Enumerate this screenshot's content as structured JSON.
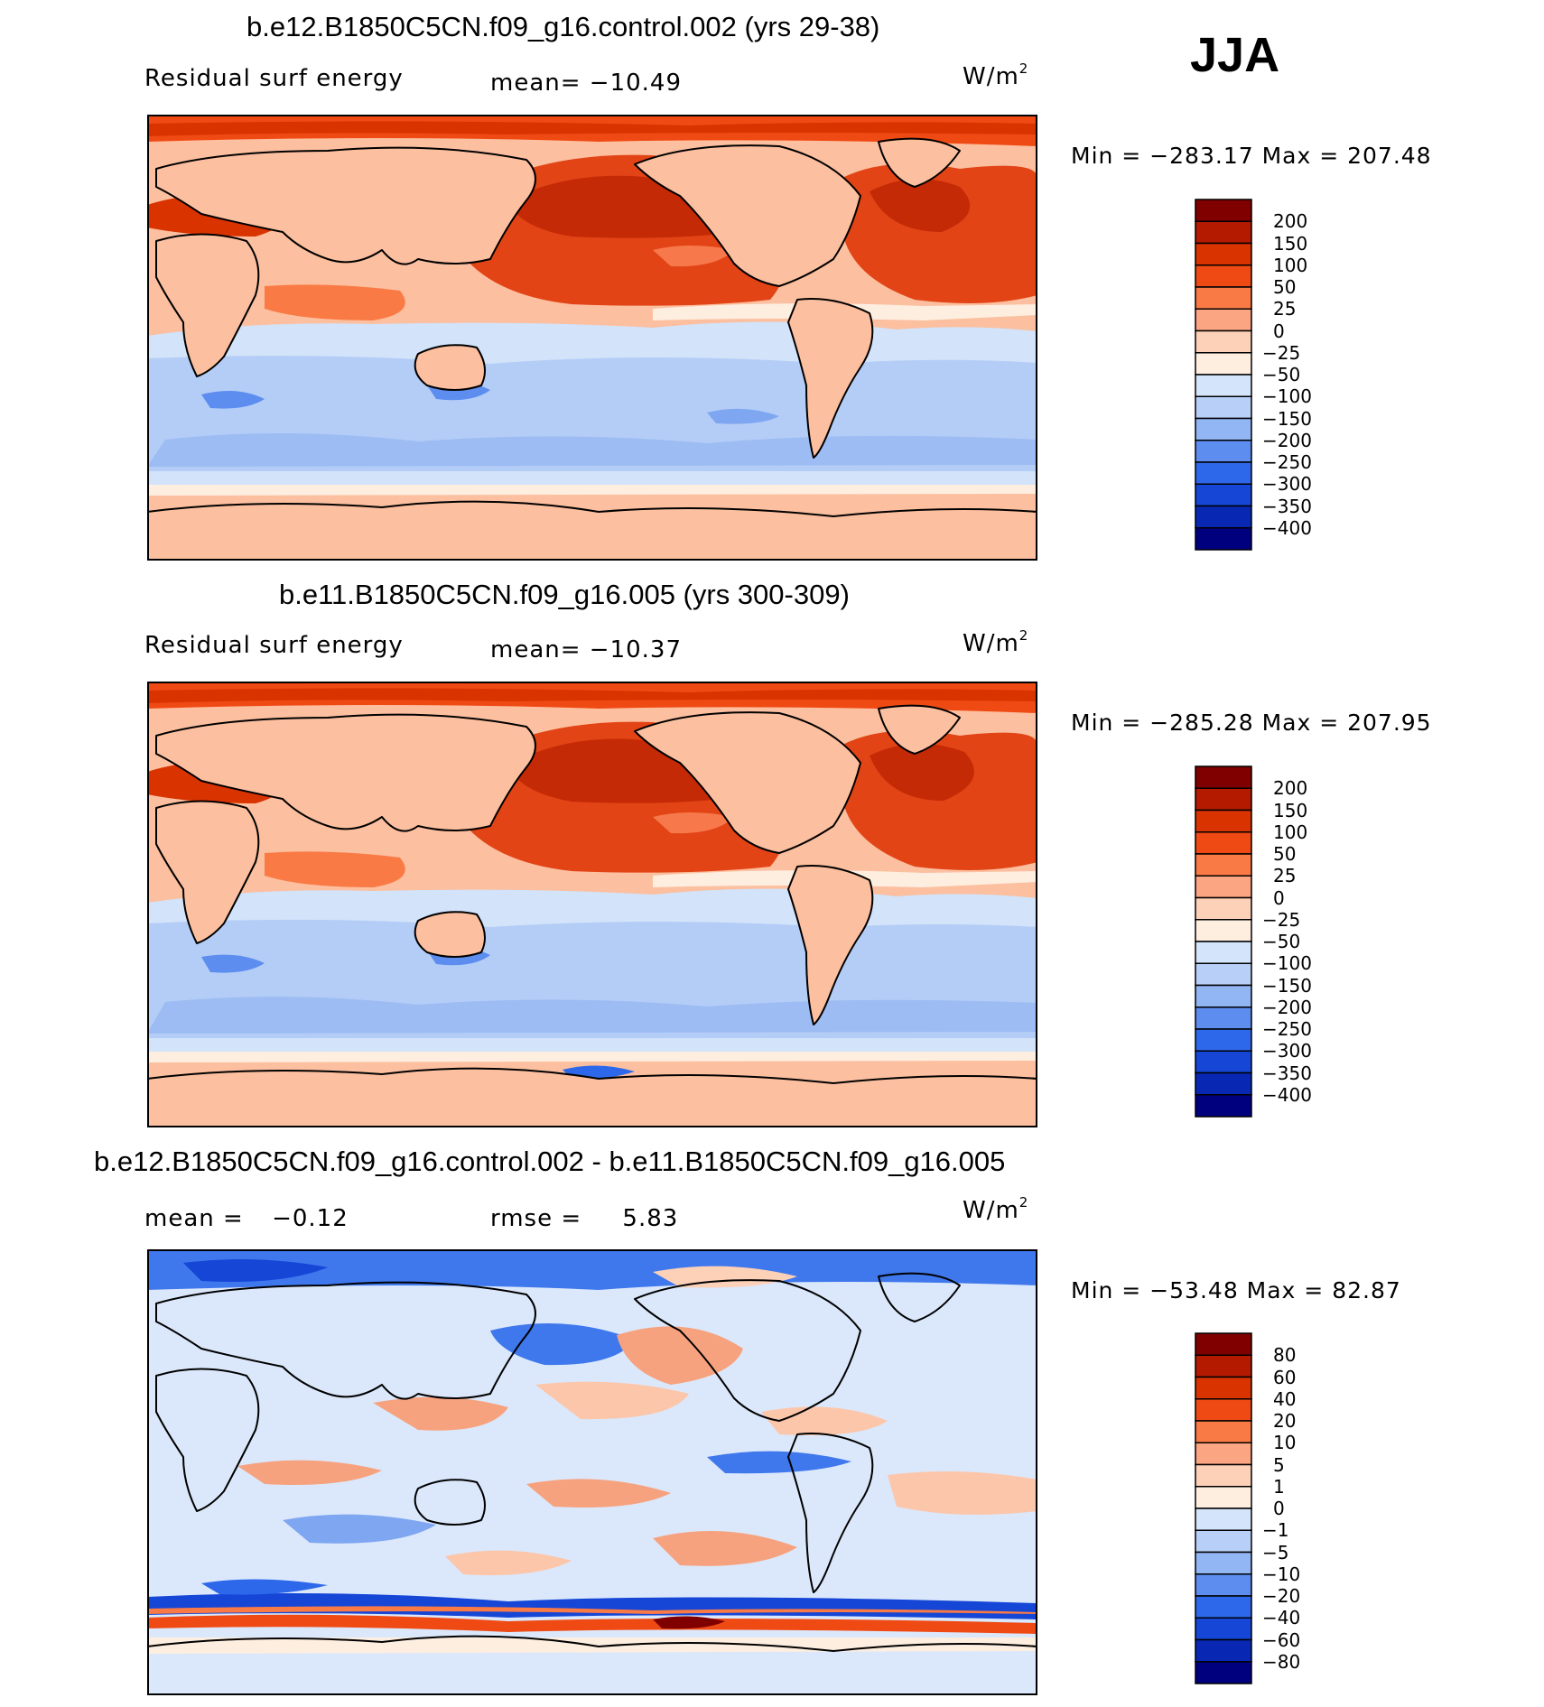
{
  "season": "JJA",
  "units_base": "W/m",
  "units_exp": "2",
  "panels": [
    {
      "title": "b.e12.B1850C5CN.f09_g16.control.002 (yrs 29-38)",
      "left_label": "Residual surf energy",
      "stat_label": "mean=",
      "stat_value": "−10.49",
      "minmax": "Min = −283.17 Max = 207.48"
    },
    {
      "title": "b.e11.B1850C5CN.f09_g16.005 (yrs 300-309)",
      "left_label": "Residual surf energy",
      "stat_label": "mean=",
      "stat_value": "−10.37",
      "minmax": "Min = −285.28 Max = 207.95"
    },
    {
      "title": "b.e12.B1850C5CN.f09_g16.control.002 - b.e11.B1850C5CN.f09_g16.005",
      "left_label": "mean =",
      "left_value": "−0.12",
      "stat_label": "rmse =",
      "stat_value": "5.83",
      "minmax": "Min = −53.48 Max =  82.87"
    }
  ],
  "colorbars": [
    {
      "labels": [
        "200",
        "150",
        "100",
        "50",
        "25",
        "0",
        "−25",
        "−50",
        "−100",
        "−150",
        "−200",
        "−250",
        "−300",
        "−350",
        "−400"
      ],
      "colors": [
        "#800000",
        "#b31a00",
        "#d93300",
        "#f04a14",
        "#fa7a45",
        "#fca582",
        "#fdd0b8",
        "#fdeee0",
        "#d4e4fb",
        "#b8d0f7",
        "#92b5f3",
        "#5c8def",
        "#2e68ea",
        "#1546d6",
        "#0828b4",
        "#00007f"
      ]
    },
    {
      "labels": [
        "200",
        "150",
        "100",
        "50",
        "25",
        "0",
        "−25",
        "−50",
        "−100",
        "−150",
        "−200",
        "−250",
        "−300",
        "−350",
        "−400"
      ],
      "colors": [
        "#800000",
        "#b31a00",
        "#d93300",
        "#f04a14",
        "#fa7a45",
        "#fca582",
        "#fdd0b8",
        "#fdeee0",
        "#d4e4fb",
        "#b8d0f7",
        "#92b5f3",
        "#5c8def",
        "#2e68ea",
        "#1546d6",
        "#0828b4",
        "#00007f"
      ]
    },
    {
      "labels": [
        "80",
        "60",
        "40",
        "20",
        "10",
        "5",
        "1",
        "0",
        "−1",
        "−5",
        "−10",
        "−20",
        "−40",
        "−60",
        "−80"
      ],
      "colors": [
        "#800000",
        "#b31a00",
        "#d93300",
        "#f04a14",
        "#fa7a45",
        "#fca582",
        "#fdd0b8",
        "#fdeee0",
        "#d4e4fb",
        "#b8d0f7",
        "#92b5f3",
        "#5c8def",
        "#2e68ea",
        "#1546d6",
        "#0828b4",
        "#00007f"
      ]
    }
  ],
  "chart_data": [
    {
      "type": "heatmap",
      "title": "b.e12.B1850C5CN.f09_g16.control.002 (yrs 29-38)",
      "variable": "Residual surf energy",
      "season": "JJA",
      "units": "W/m2",
      "mean": -10.49,
      "min": -283.17,
      "max": 207.48,
      "contour_levels": [
        -400,
        -350,
        -300,
        -250,
        -200,
        -150,
        -100,
        -50,
        -25,
        0,
        25,
        50,
        100,
        150,
        200
      ]
    },
    {
      "type": "heatmap",
      "title": "b.e11.B1850C5CN.f09_g16.005 (yrs 300-309)",
      "variable": "Residual surf energy",
      "season": "JJA",
      "units": "W/m2",
      "mean": -10.37,
      "min": -285.28,
      "max": 207.95,
      "contour_levels": [
        -400,
        -350,
        -300,
        -250,
        -200,
        -150,
        -100,
        -50,
        -25,
        0,
        25,
        50,
        100,
        150,
        200
      ]
    },
    {
      "type": "heatmap",
      "title": "b.e12.B1850C5CN.f09_g16.control.002 - b.e11.B1850C5CN.f09_g16.005",
      "season": "JJA",
      "units": "W/m2",
      "mean": -0.12,
      "rmse": 5.83,
      "min": -53.48,
      "max": 82.87,
      "contour_levels": [
        -80,
        -60,
        -40,
        -20,
        -10,
        -5,
        -1,
        0,
        1,
        5,
        10,
        20,
        40,
        60,
        80
      ]
    }
  ]
}
